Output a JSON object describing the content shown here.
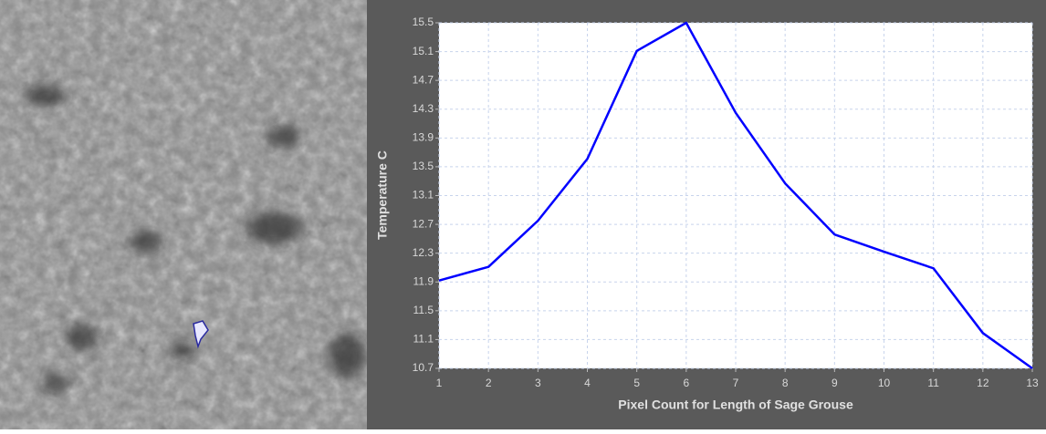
{
  "chart_data": {
    "type": "line",
    "x_label": "Pixel Count for Length of Sage Grouse",
    "y_label": "Temperature C",
    "x": [
      1,
      2,
      3,
      4,
      5,
      6,
      7,
      8,
      9,
      10,
      11,
      12,
      13
    ],
    "series": [
      {
        "color": "#0000ff",
        "values": [
          11.92,
          12.11,
          12.75,
          13.61,
          15.11,
          15.5,
          14.25,
          13.27,
          12.56,
          12.32,
          12.09,
          11.19,
          10.7
        ]
      }
    ],
    "xlim": [
      1,
      13
    ],
    "xticks": [
      1,
      2,
      3,
      4,
      5,
      6,
      7,
      8,
      9,
      10,
      11,
      12,
      13
    ],
    "ylim": [
      10.7,
      15.5
    ],
    "yticks": [
      10.7,
      11.1,
      11.5,
      11.9,
      12.3,
      12.7,
      13.1,
      13.5,
      13.9,
      14.3,
      14.7,
      15.1,
      15.5
    ],
    "grid": true
  }
}
